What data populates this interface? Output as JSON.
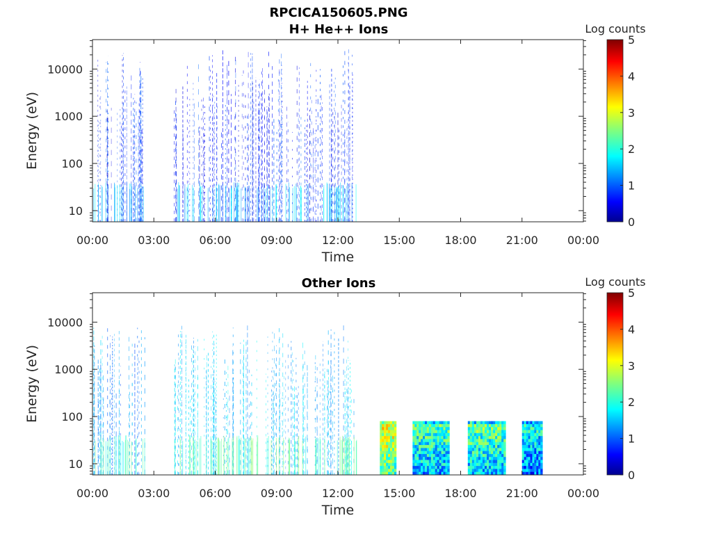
{
  "figure_title": "RPCICA150605.PNG",
  "colorbar": {
    "label": "Log counts",
    "min": 0,
    "max": 5,
    "ticks": [
      "0",
      "1",
      "2",
      "3",
      "4",
      "5"
    ],
    "colormap": "jet"
  },
  "chart_data": [
    {
      "type": "heatmap",
      "title": "H+ He++ Ions",
      "xlabel": "Time",
      "ylabel": "Energy (eV)",
      "xlim_hours": [
        0,
        24
      ],
      "x_ticks": [
        "00:00",
        "03:00",
        "06:00",
        "09:00",
        "12:00",
        "15:00",
        "18:00",
        "21:00",
        "00:00"
      ],
      "y_scale": "log",
      "ylim": [
        5.8,
        42000
      ],
      "y_ticks": [
        "10",
        "100",
        "1000",
        "10000"
      ],
      "data_segments": [
        {
          "start_hour": 0.05,
          "end_hour": 2.6,
          "energy_max_ev": 30000,
          "log_counts_typical": 0.6,
          "pattern": "sparse"
        },
        {
          "start_hour": 4.0,
          "end_hour": 12.95,
          "energy_max_ev": 30000,
          "log_counts_typical": 0.6,
          "pattern": "sparse"
        }
      ]
    },
    {
      "type": "heatmap",
      "title": "Other Ions",
      "xlabel": "Time",
      "ylabel": "Energy (eV)",
      "xlim_hours": [
        0,
        24
      ],
      "x_ticks": [
        "00:00",
        "03:00",
        "06:00",
        "09:00",
        "12:00",
        "15:00",
        "18:00",
        "21:00",
        "00:00"
      ],
      "y_scale": "log",
      "ylim": [
        5.8,
        42000
      ],
      "y_ticks": [
        "10",
        "100",
        "1000",
        "10000"
      ],
      "data_segments": [
        {
          "start_hour": 0.05,
          "end_hour": 2.6,
          "energy_max_ev": 9000,
          "log_counts_typical": 1.2,
          "pattern": "sparse"
        },
        {
          "start_hour": 4.0,
          "end_hour": 12.95,
          "energy_max_ev": 9000,
          "log_counts_typical": 1.4,
          "pattern": "sparse"
        },
        {
          "start_hour": 14.05,
          "end_hour": 14.85,
          "energy_max_ev": 80,
          "log_counts_typical": 3.1,
          "pattern": "dense"
        },
        {
          "start_hour": 15.65,
          "end_hour": 17.45,
          "energy_max_ev": 80,
          "log_counts_typical": 2.3,
          "pattern": "dense"
        },
        {
          "start_hour": 18.35,
          "end_hour": 20.2,
          "energy_max_ev": 80,
          "log_counts_typical": 2.4,
          "pattern": "dense"
        },
        {
          "start_hour": 21.0,
          "end_hour": 22.0,
          "energy_max_ev": 80,
          "log_counts_typical": 2.0,
          "pattern": "dense"
        }
      ]
    }
  ]
}
